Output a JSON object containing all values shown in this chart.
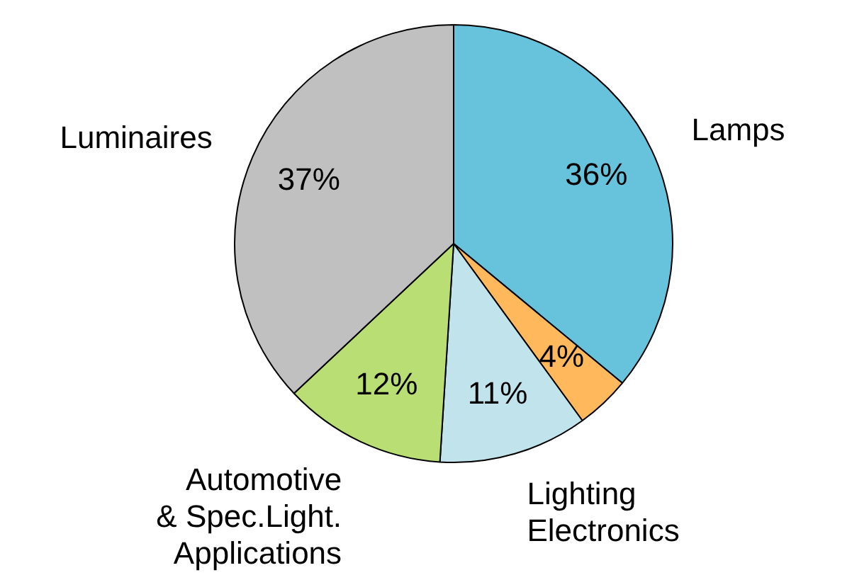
{
  "chart_data": {
    "type": "pie",
    "categories": [
      "Lamps",
      null,
      "Lighting Electronics",
      "Automotive & Spec.Light. Applications",
      "Luminaires"
    ],
    "values": [
      36,
      4,
      11,
      12,
      37
    ],
    "colors": [
      "#67c3dc",
      "#ffb85c",
      "#c0e3ec",
      "#b8de74",
      "#c0c0c0"
    ],
    "value_labels": [
      "36%",
      "4%",
      "11%",
      "12%",
      "37%"
    ],
    "legend": false
  }
}
